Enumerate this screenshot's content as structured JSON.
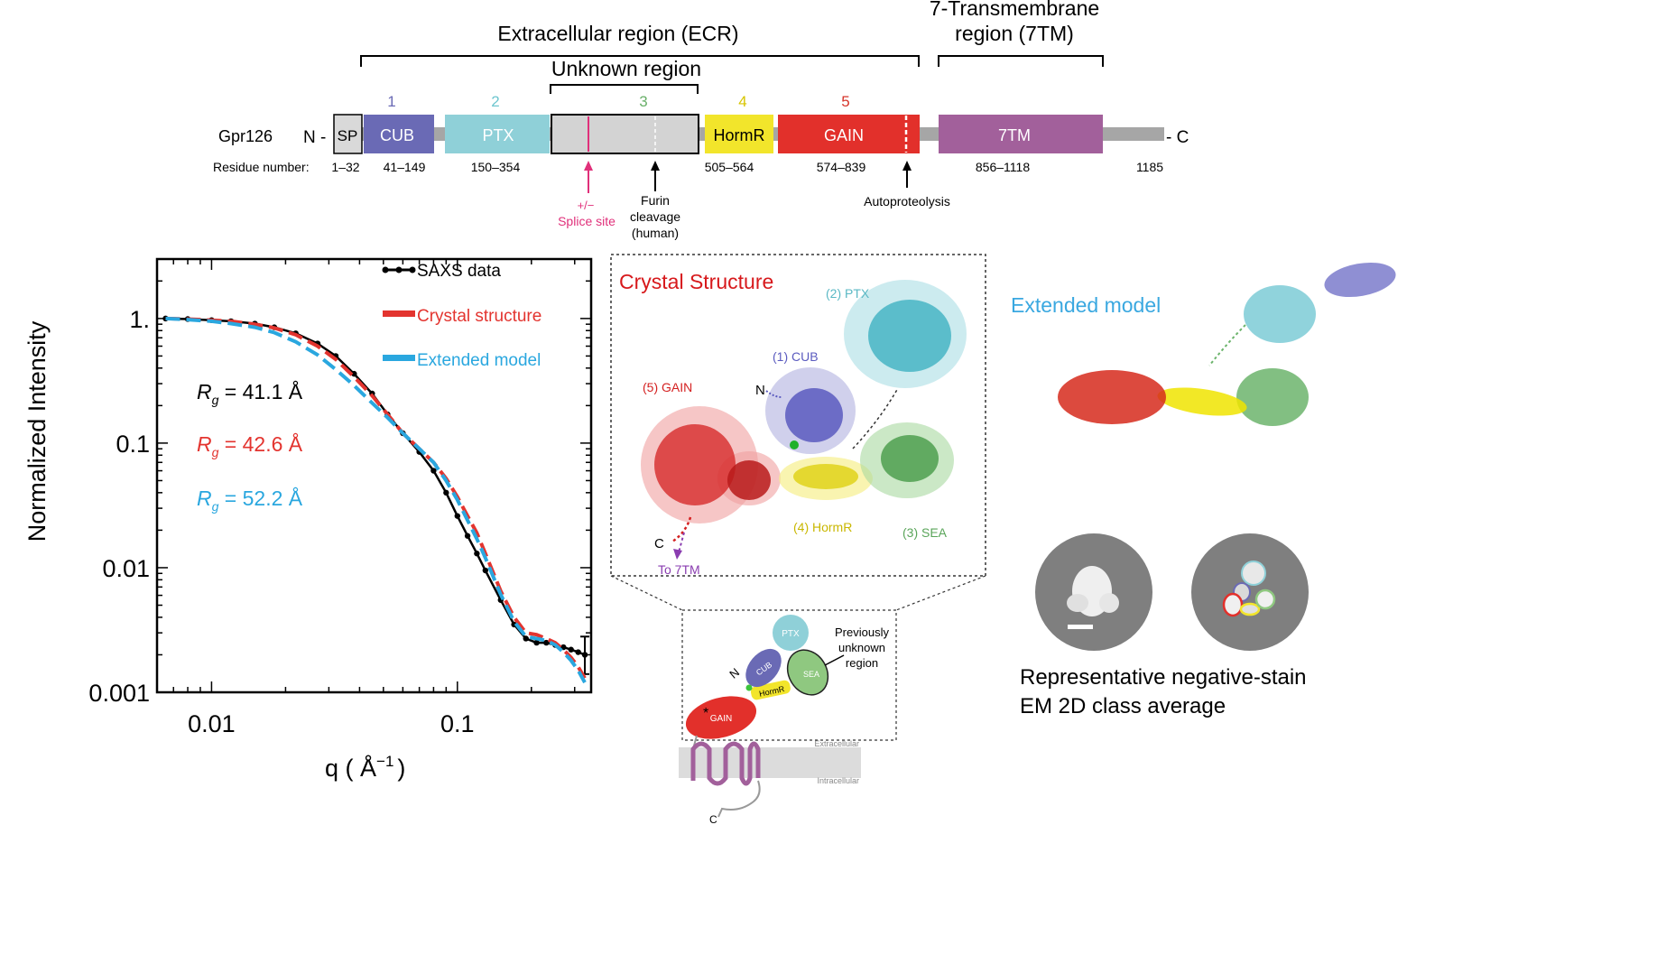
{
  "domain_map": {
    "ecr_label": "Extracellular region (ECR)",
    "tm_label_line1": "7-Transmembrane",
    "tm_label_line2": "region (7TM)",
    "unknown_label": "Unknown region",
    "protein_name": "Gpr126",
    "n_term": "N -",
    "c_term": "- C",
    "residue_caption": "Residue number:",
    "domains": [
      {
        "name": "SP",
        "number": "",
        "residues": "1–32",
        "color": "#d9d9d9"
      },
      {
        "name": "CUB",
        "number": "1",
        "residues": "41–149",
        "color": "#6a6ab5"
      },
      {
        "name": "PTX",
        "number": "2",
        "residues": "150–354",
        "color": "#8fd0d8"
      },
      {
        "name": "",
        "number": "3",
        "residues": "",
        "color": "#d3d3d3"
      },
      {
        "name": "HormR",
        "number": "4",
        "residues": "505–564",
        "color": "#f2e52b"
      },
      {
        "name": "GAIN",
        "number": "5",
        "residues": "574–839",
        "color": "#e2302b"
      },
      {
        "name": "7TM",
        "number": "",
        "residues": "856–1118",
        "color": "#a2609b"
      }
    ],
    "last_residue": "1185",
    "number_colors": [
      "#6a6ab5",
      "#6ec6cf",
      "#6ab06a",
      "#d7c400",
      "#d6342a"
    ],
    "splice_label_1": "+/−",
    "splice_label_2": "Splice site",
    "furin_label": [
      "Furin",
      "cleavage",
      "(human)"
    ],
    "autoproteolysis_label": "Autoproteolysis"
  },
  "saxs_chart": {
    "chart_data": {
      "type": "line",
      "xlabel": "q ( Å",
      "xlabel_sup": "−1",
      "xlabel_close": ")",
      "ylabel": "Normalized Intensity",
      "x_scale": "log",
      "y_scale": "log",
      "xlim": [
        0.006,
        0.35
      ],
      "ylim": [
        0.001,
        3
      ],
      "x_ticks": [
        0.01,
        0.1
      ],
      "x_tick_labels": [
        "0.01",
        "0.1"
      ],
      "y_ticks": [
        0.001,
        0.01,
        0.1,
        1
      ],
      "y_tick_labels": [
        "0.001",
        "0.01",
        "0.1",
        "1."
      ],
      "series": [
        {
          "name": "SAXS data",
          "color": "#000000",
          "style": "solid-points",
          "x": [
            0.0065,
            0.008,
            0.01,
            0.012,
            0.015,
            0.018,
            0.022,
            0.027,
            0.032,
            0.038,
            0.045,
            0.052,
            0.06,
            0.07,
            0.08,
            0.09,
            0.1,
            0.11,
            0.12,
            0.13,
            0.15,
            0.17,
            0.19,
            0.21,
            0.23,
            0.25,
            0.27,
            0.29,
            0.31,
            0.33
          ],
          "y": [
            1.0,
            0.99,
            0.97,
            0.95,
            0.91,
            0.85,
            0.76,
            0.63,
            0.5,
            0.36,
            0.25,
            0.17,
            0.12,
            0.085,
            0.06,
            0.04,
            0.026,
            0.018,
            0.013,
            0.0095,
            0.0055,
            0.0035,
            0.0027,
            0.0025,
            0.0025,
            0.0024,
            0.0023,
            0.0022,
            0.0021,
            0.002
          ],
          "error_index": 29,
          "error_low": 0.0014,
          "error_high": 0.0028
        },
        {
          "name": "Crystal structure",
          "color": "#e3342f",
          "style": "dashed",
          "x": [
            0.0065,
            0.008,
            0.01,
            0.012,
            0.015,
            0.018,
            0.022,
            0.027,
            0.032,
            0.038,
            0.045,
            0.052,
            0.06,
            0.07,
            0.08,
            0.09,
            0.1,
            0.11,
            0.12,
            0.13,
            0.15,
            0.17,
            0.19,
            0.21,
            0.23,
            0.25,
            0.27,
            0.29,
            0.31,
            0.33
          ],
          "y": [
            1.0,
            0.99,
            0.97,
            0.95,
            0.9,
            0.84,
            0.74,
            0.6,
            0.47,
            0.34,
            0.24,
            0.17,
            0.12,
            0.09,
            0.07,
            0.052,
            0.037,
            0.026,
            0.019,
            0.013,
            0.0065,
            0.004,
            0.003,
            0.0029,
            0.0027,
            0.0025,
            0.0022,
            0.0019,
            0.0016,
            0.0013
          ]
        },
        {
          "name": "Extended model",
          "color": "#2aa7df",
          "style": "dashed",
          "x": [
            0.0065,
            0.008,
            0.01,
            0.012,
            0.015,
            0.018,
            0.022,
            0.027,
            0.032,
            0.038,
            0.045,
            0.052,
            0.06,
            0.07,
            0.08,
            0.09,
            0.1,
            0.11,
            0.12,
            0.13,
            0.15,
            0.17,
            0.19,
            0.21,
            0.23,
            0.25,
            0.27,
            0.29,
            0.31,
            0.33
          ],
          "y": [
            1.0,
            0.98,
            0.95,
            0.91,
            0.85,
            0.77,
            0.65,
            0.51,
            0.39,
            0.29,
            0.21,
            0.16,
            0.12,
            0.09,
            0.07,
            0.05,
            0.035,
            0.024,
            0.017,
            0.012,
            0.0061,
            0.0037,
            0.0028,
            0.0027,
            0.0026,
            0.0024,
            0.0021,
            0.0018,
            0.0015,
            0.0012
          ]
        }
      ],
      "legend_placement": "top-right",
      "annotations": [
        {
          "symbol": "R",
          "sub": "g",
          "text": " = 41.1 Å",
          "color": "#000000"
        },
        {
          "symbol": "R",
          "sub": "g",
          "text": " = 42.6 Å",
          "color": "#e3342f"
        },
        {
          "symbol": "R",
          "sub": "g",
          "text": " = 52.2 Å",
          "color": "#2aa7df"
        }
      ]
    }
  },
  "crystal_panel": {
    "title": "Crystal Structure",
    "title_color": "#d7191c",
    "labels": {
      "ptx": "(2) PTX",
      "cub": "(1) CUB",
      "gain": "(5) GAIN",
      "hormr": "(4) HormR",
      "sea": "(3) SEA",
      "n": "N",
      "c": "C",
      "to7tm": "To 7TM"
    }
  },
  "extended_panel": {
    "title": "Extended model",
    "title_color": "#3aa8e0"
  },
  "schematic": {
    "ptx": "PTX",
    "cub": "CUB",
    "sea": "SEA",
    "hormr": "HormR",
    "gain": "GAIN",
    "n": "N",
    "c": "C",
    "note": [
      "Previously",
      "unknown",
      "region"
    ],
    "extracellular": "Extracellular",
    "intracellular": "Intracellular"
  },
  "em_panel": {
    "caption_line1": "Representative negative-stain",
    "caption_line2": "EM 2D class average"
  }
}
